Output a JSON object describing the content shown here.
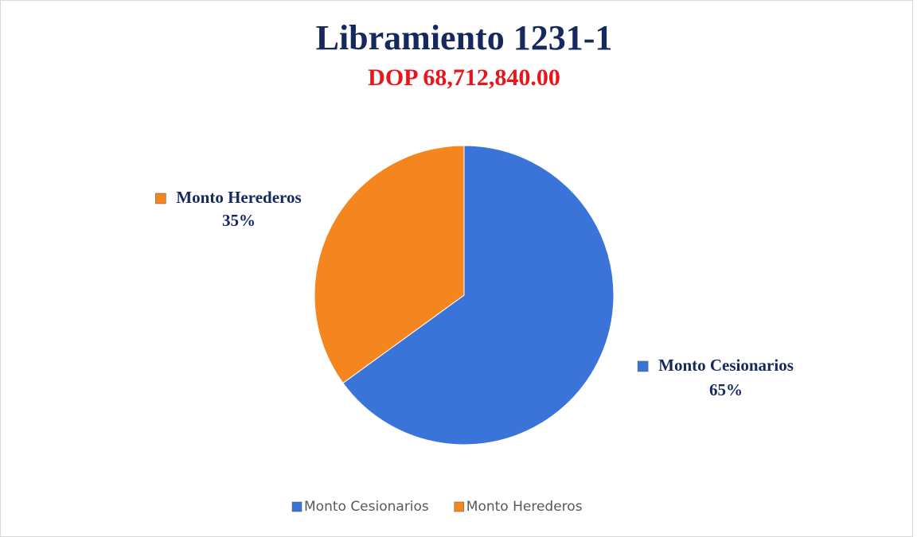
{
  "chart_data": {
    "type": "pie",
    "title": "Libramiento 1231-1",
    "subtitle": "DOP 68,712,840.00",
    "categories": [
      "Monto Cesionarios",
      "Monto Herederos"
    ],
    "values": [
      65,
      35
    ],
    "value_labels": [
      "65%",
      "35%"
    ],
    "colors": [
      "#3a74d8",
      "#f5861f"
    ],
    "legend": "bottom"
  }
}
